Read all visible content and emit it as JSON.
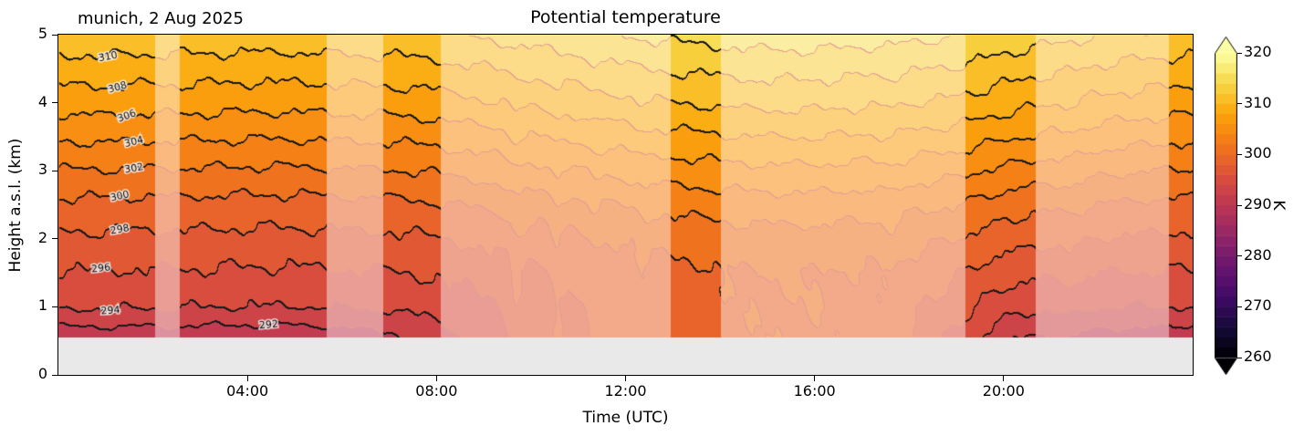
{
  "figure": {
    "subtitle_left": "munich, 2 Aug 2025",
    "title": "Potential temperature",
    "xlabel": "Time (UTC)",
    "ylabel": "Height a.s.l. (km)",
    "colorbar_label": "K"
  },
  "chart_data": {
    "type": "filled-contour",
    "title": "Potential temperature",
    "x_unit": "hours UTC",
    "x_range": [
      0,
      24
    ],
    "x_ticks": [
      {
        "t": 4,
        "label": "04:00"
      },
      {
        "t": 8,
        "label": "08:00"
      },
      {
        "t": 12,
        "label": "12:00"
      },
      {
        "t": 16,
        "label": "16:00"
      },
      {
        "t": 20,
        "label": "20:00"
      }
    ],
    "y_unit": "km a.s.l.",
    "y_range": [
      0,
      5
    ],
    "y_ticks": [
      0,
      1,
      2,
      3,
      4,
      5
    ],
    "level_step_K": 2,
    "color_range_K": [
      260,
      320
    ],
    "colorbar_ticks_K": [
      260,
      270,
      280,
      290,
      300,
      310,
      320
    ],
    "colormap": "inferno",
    "colormap_anchors": [
      "#000004",
      "#160b39",
      "#420a68",
      "#6a176e",
      "#932667",
      "#bc3754",
      "#dd513a",
      "#f37819",
      "#fca50a",
      "#f6d746",
      "#fcffa4"
    ],
    "no_data_below_km": 0.55,
    "no_data_color": "#e9e9e9",
    "faded_overlay_alpha": 0.45,
    "thin_line_color": "#cc523a",
    "bold_line_color": "#191919",
    "good_time_intervals_h": [
      [
        0,
        2.05
      ],
      [
        2.57,
        5.68
      ],
      [
        6.87,
        8.09
      ],
      [
        12.95,
        14.02
      ],
      [
        19.19,
        20.68
      ],
      [
        23.5,
        24
      ]
    ],
    "heights_km": [
      0.55,
      1.0,
      1.5,
      2.0,
      2.5,
      3.0,
      3.5,
      4.0,
      4.5,
      5.0
    ],
    "times_h": [
      0,
      1,
      2,
      3,
      4,
      5,
      6,
      7,
      8,
      9,
      10,
      11,
      12,
      13,
      14,
      15,
      16,
      17,
      18,
      19,
      20,
      21,
      22,
      23,
      24
    ],
    "theta_K": [
      [
        290.8,
        294.3,
        295.9,
        297.6,
        299.5,
        301.9,
        304.4,
        306.9,
        309.1,
        311.4
      ],
      [
        290.8,
        294.2,
        295.9,
        297.6,
        299.5,
        301.9,
        304.4,
        306.9,
        309.1,
        311.4
      ],
      [
        290.7,
        294.2,
        295.8,
        297.5,
        299.4,
        301.8,
        304.3,
        306.8,
        309.0,
        311.3
      ],
      [
        290.7,
        294.1,
        295.8,
        297.5,
        299.4,
        301.8,
        304.3,
        306.8,
        309.0,
        311.3
      ],
      [
        290.6,
        294.0,
        295.7,
        297.4,
        299.3,
        301.7,
        304.2,
        306.7,
        308.9,
        311.2
      ],
      [
        290.6,
        294.0,
        295.7,
        297.4,
        299.3,
        301.7,
        304.2,
        306.7,
        308.9,
        311.2
      ],
      [
        290.8,
        294.1,
        295.8,
        297.5,
        299.4,
        301.8,
        304.3,
        306.8,
        309.0,
        311.3
      ],
      [
        291.5,
        294.3,
        295.9,
        297.6,
        299.5,
        301.9,
        304.4,
        306.9,
        309.1,
        311.4
      ],
      [
        293.2,
        294.8,
        296.2,
        297.9,
        299.8,
        302.2,
        304.7,
        307.2,
        309.4,
        311.7
      ],
      [
        295.0,
        295.8,
        296.8,
        298.4,
        300.3,
        302.7,
        305.2,
        307.7,
        309.9,
        312.2
      ],
      [
        296.5,
        296.8,
        297.5,
        299.0,
        300.9,
        303.3,
        305.8,
        308.3,
        310.5,
        312.8
      ],
      [
        297.5,
        297.7,
        298.2,
        299.6,
        301.5,
        303.9,
        306.4,
        308.9,
        311.1,
        313.4
      ],
      [
        298.5,
        298.6,
        298.9,
        300.2,
        302.1,
        304.5,
        307.0,
        309.5,
        311.7,
        314.0
      ],
      [
        299.0,
        299.1,
        299.4,
        300.7,
        302.6,
        305.0,
        307.5,
        310.0,
        312.2,
        314.5
      ],
      [
        299.5,
        299.6,
        299.8,
        301.0,
        302.9,
        305.3,
        307.8,
        310.3,
        312.5,
        314.8
      ],
      [
        299.8,
        299.9,
        300.1,
        301.2,
        303.1,
        305.5,
        308.0,
        310.5,
        312.7,
        315.0
      ],
      [
        299.8,
        299.9,
        300.1,
        301.2,
        303.1,
        305.5,
        308.0,
        310.5,
        312.7,
        315.0
      ],
      [
        299.3,
        299.5,
        299.8,
        301.0,
        302.9,
        305.3,
        307.8,
        310.3,
        312.5,
        314.8
      ],
      [
        298.0,
        298.6,
        299.2,
        300.6,
        302.5,
        305.0,
        307.5,
        310.0,
        312.2,
        314.5
      ],
      [
        295.5,
        296.8,
        298.2,
        300.0,
        302.0,
        304.5,
        307.1,
        309.6,
        311.8,
        314.1
      ],
      [
        292.5,
        294.8,
        296.9,
        298.9,
        301.0,
        303.6,
        306.3,
        308.8,
        311.0,
        313.3
      ],
      [
        291.5,
        294.2,
        296.2,
        298.2,
        300.3,
        302.9,
        305.6,
        308.1,
        310.3,
        312.6
      ],
      [
        291.0,
        294.0,
        296.0,
        297.9,
        299.9,
        302.4,
        305.0,
        307.5,
        309.7,
        312.0
      ],
      [
        290.9,
        294.0,
        295.9,
        297.7,
        299.6,
        302.0,
        304.6,
        307.1,
        309.3,
        311.6
      ],
      [
        290.8,
        294.0,
        295.9,
        297.6,
        299.5,
        301.9,
        304.4,
        306.9,
        309.1,
        311.4
      ]
    ],
    "thermal_plumes": [
      {
        "t": 9.7,
        "w": 0.18,
        "a": 1.5
      },
      {
        "t": 10.55,
        "w": 0.15,
        "a": 1.3
      },
      {
        "t": 11.35,
        "w": 0.15,
        "a": 1.1
      },
      {
        "t": 12.4,
        "w": 0.2,
        "a": 0.8
      },
      {
        "t": 17.6,
        "w": 0.25,
        "a": 0.9
      },
      {
        "t": 21.4,
        "w": 0.35,
        "a": 0.7
      }
    ],
    "wiggle": {
      "a1": 0.25,
      "f1t": 4.1,
      "f1z": 5.3,
      "a2": 0.15,
      "f2t": 9.7,
      "f2z": -2.9,
      "a3": 0.08,
      "f3t": 21.0,
      "f3z": 13.0
    },
    "labeled_contours": [
      {
        "value": 310,
        "t": 1.05,
        "z": 4.67,
        "rot": -10
      },
      {
        "value": 308,
        "t": 1.25,
        "z": 4.22,
        "rot": -16
      },
      {
        "value": 306,
        "t": 1.45,
        "z": 3.8,
        "rot": -20
      },
      {
        "value": 304,
        "t": 1.6,
        "z": 3.42,
        "rot": -14
      },
      {
        "value": 302,
        "t": 1.6,
        "z": 3.03,
        "rot": -10
      },
      {
        "value": 300,
        "t": 1.3,
        "z": 2.62,
        "rot": -12
      },
      {
        "value": 298,
        "t": 1.3,
        "z": 2.13,
        "rot": -10
      },
      {
        "value": 296,
        "t": 0.9,
        "z": 1.56,
        "rot": -6
      },
      {
        "value": 294,
        "t": 1.1,
        "z": 0.94,
        "rot": -4
      },
      {
        "value": 292,
        "t": 4.45,
        "z": 0.73,
        "rot": -5
      }
    ]
  }
}
